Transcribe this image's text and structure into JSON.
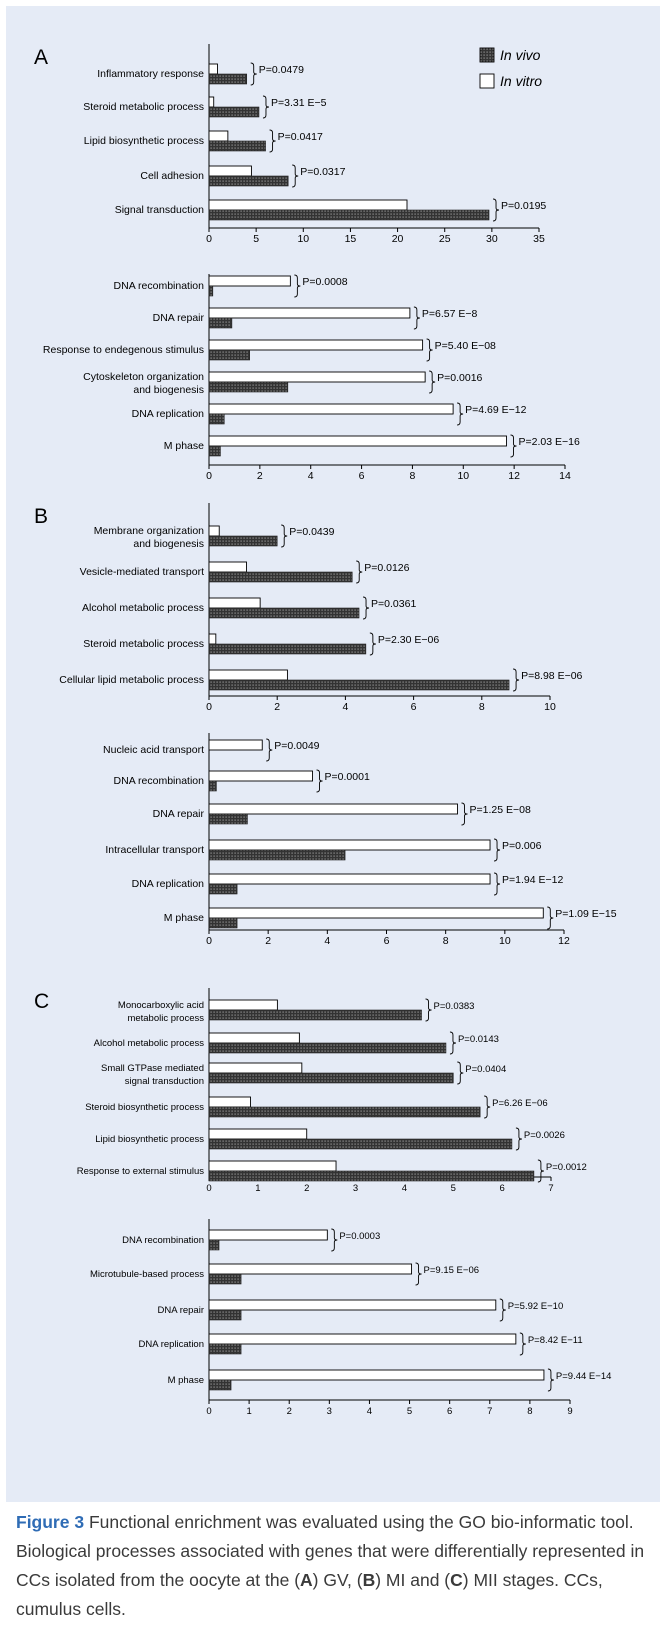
{
  "figure": {
    "caption_label": "Figure 3",
    "caption_segments": [
      {
        "text": " Functional enrichment was evaluated using the GO bio-informatic tool. Biological processes associated with genes that were differentially represented in CCs isolated from the oocyte at the (",
        "bold": false
      },
      {
        "text": "A",
        "bold": true
      },
      {
        "text": ") GV, (",
        "bold": false
      },
      {
        "text": "B",
        "bold": true
      },
      {
        "text": ") MI and (",
        "bold": false
      },
      {
        "text": "C",
        "bold": true
      },
      {
        "text": ") MII stages. CCs, cumulus cells.",
        "bold": false
      }
    ]
  },
  "colors": {
    "background_panel": "#e5ebf6",
    "in_vivo_fill": "#3a3a3a",
    "in_vitro_fill": "#ffffff",
    "caption_label": "#2f6cb5"
  },
  "chart_data": [
    {
      "type": "bar",
      "orientation": "horizontal",
      "panel_letter": "A",
      "legend": [
        {
          "name": "In vivo",
          "style": "dark-dotted"
        },
        {
          "name": "In vitro",
          "style": "white"
        }
      ],
      "legend_position": "top-right",
      "categories": [
        "Inflammatory response",
        "Steroid metabolic process",
        "Lipid biosynthetic process",
        "Cell adhesion",
        "Signal transduction"
      ],
      "series": [
        {
          "name": "In vitro",
          "values": [
            0.9,
            0.5,
            2.0,
            4.5,
            21.0
          ]
        },
        {
          "name": "In vivo",
          "values": [
            4.0,
            5.3,
            6.0,
            8.4,
            29.7
          ]
        }
      ],
      "p_values": [
        "P=0.0479",
        "P=3.31 E−5",
        "P=0.0417",
        "P=0.0317",
        "P=0.0195"
      ],
      "xlim": [
        0,
        35
      ],
      "xticks": [
        0,
        5,
        10,
        15,
        20,
        25,
        30,
        35
      ]
    },
    {
      "type": "bar",
      "orientation": "horizontal",
      "categories": [
        "DNA recombination",
        "DNA repair",
        "Response to endegenous stimulus",
        "Cytoskeleton organization and biogenesis",
        "DNA replication",
        "M phase"
      ],
      "series": [
        {
          "name": "In vitro",
          "values": [
            3.2,
            7.9,
            8.4,
            8.5,
            9.6,
            11.7
          ]
        },
        {
          "name": "In vivo",
          "values": [
            0.15,
            0.9,
            1.6,
            3.1,
            0.6,
            0.45
          ]
        }
      ],
      "p_values": [
        "P=0.0008",
        "P=6.57 E−8",
        "P=5.40 E−08",
        "P=0.0016",
        "P=4.69 E−12",
        "P=2.03 E−16"
      ],
      "xlim": [
        0,
        14
      ],
      "xticks": [
        0,
        2,
        4,
        6,
        8,
        10,
        12,
        14
      ]
    },
    {
      "type": "bar",
      "orientation": "horizontal",
      "panel_letter": "B",
      "categories": [
        "Membrane organization and biogenesis",
        "Vesicle-mediated transport",
        "Alcohol metabolic process",
        "Steroid metabolic process",
        "Cellular lipid metabolic process"
      ],
      "series": [
        {
          "name": "In vitro",
          "values": [
            0.3,
            1.1,
            1.5,
            0.2,
            2.3
          ]
        },
        {
          "name": "In vivo",
          "values": [
            2.0,
            4.2,
            4.4,
            4.6,
            8.8
          ]
        }
      ],
      "p_values": [
        "P=0.0439",
        "P=0.0126",
        "P=0.0361",
        "P=2.30 E−06",
        "P=8.98 E−06"
      ],
      "xlim": [
        0,
        10
      ],
      "xticks": [
        0,
        2,
        4,
        6,
        8,
        10
      ]
    },
    {
      "type": "bar",
      "orientation": "horizontal",
      "categories": [
        "Nucleic acid transport",
        "DNA recombination",
        "DNA repair",
        "Intracellular transport",
        "DNA replication",
        "M phase"
      ],
      "series": [
        {
          "name": "In vitro",
          "values": [
            1.8,
            3.5,
            8.4,
            9.5,
            9.5,
            11.3
          ]
        },
        {
          "name": "In vivo",
          "values": [
            0.0,
            0.25,
            1.3,
            4.6,
            0.95,
            0.95
          ]
        }
      ],
      "p_values": [
        "P=0.0049",
        "P=0.0001",
        "P=1.25 E−08",
        "P=0.006",
        "P=1.94 E−12",
        "P=1.09 E−15"
      ],
      "xlim": [
        0,
        12
      ],
      "xticks": [
        0,
        2,
        4,
        6,
        8,
        10,
        12
      ]
    },
    {
      "type": "bar",
      "orientation": "horizontal",
      "panel_letter": "C",
      "categories": [
        "Monocarboxylic acid metabolic process",
        "Alcohol metabolic process",
        "Small GTPase mediated signal transduction",
        "Steroid biosynthetic process",
        "Lipid biosynthetic process",
        "Response to external stimulus"
      ],
      "series": [
        {
          "name": "In vitro",
          "values": [
            1.4,
            1.85,
            1.9,
            0.85,
            2.0,
            2.6
          ]
        },
        {
          "name": "In vivo",
          "values": [
            4.35,
            4.85,
            5.0,
            5.55,
            6.2,
            6.65
          ]
        }
      ],
      "p_values": [
        "P=0.0383",
        "P=0.0143",
        "P=0.0404",
        "P=6.26 E−06",
        "P=0.0026",
        "P=0.0012"
      ],
      "xlim": [
        0,
        7
      ],
      "xticks": [
        0,
        1,
        2,
        3,
        4,
        5,
        6,
        7
      ]
    },
    {
      "type": "bar",
      "orientation": "horizontal",
      "categories": [
        "DNA recombination",
        "Microtubule-based process",
        "DNA repair",
        "DNA replication",
        "M phase"
      ],
      "series": [
        {
          "name": "In vitro",
          "values": [
            2.95,
            5.05,
            7.15,
            7.65,
            8.35
          ]
        },
        {
          "name": "In vivo",
          "values": [
            0.25,
            0.8,
            0.8,
            0.8,
            0.55
          ]
        }
      ],
      "p_values": [
        "P=0.0003",
        "P=9.15 E−06",
        "P=5.92 E−10",
        "P=8.42 E−11",
        "P=9.44 E−14"
      ],
      "xlim": [
        0,
        9
      ],
      "xticks": [
        0,
        1,
        2,
        3,
        4,
        5,
        6,
        7,
        8,
        9
      ]
    }
  ]
}
